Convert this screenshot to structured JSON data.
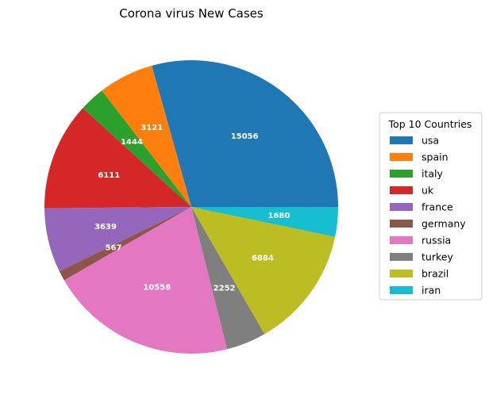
{
  "chart_data": {
    "type": "pie",
    "title": "Corona virus New Cases",
    "legend_title": "Top 10 Countries",
    "legend_position": "right",
    "start_angle_deg": 0,
    "direction": "counterclockwise",
    "categories": [
      "usa",
      "spain",
      "italy",
      "uk",
      "france",
      "germany",
      "russia",
      "turkey",
      "brazil",
      "iran"
    ],
    "values": [
      15056,
      3121,
      1444,
      6111,
      3639,
      567,
      10558,
      2252,
      6884,
      1680
    ],
    "colors": [
      "#1f77b4",
      "#ff7f0e",
      "#2ca02c",
      "#d62728",
      "#9467bd",
      "#8c564b",
      "#e377c2",
      "#7f7f7f",
      "#bcbd22",
      "#17becf"
    ]
  }
}
